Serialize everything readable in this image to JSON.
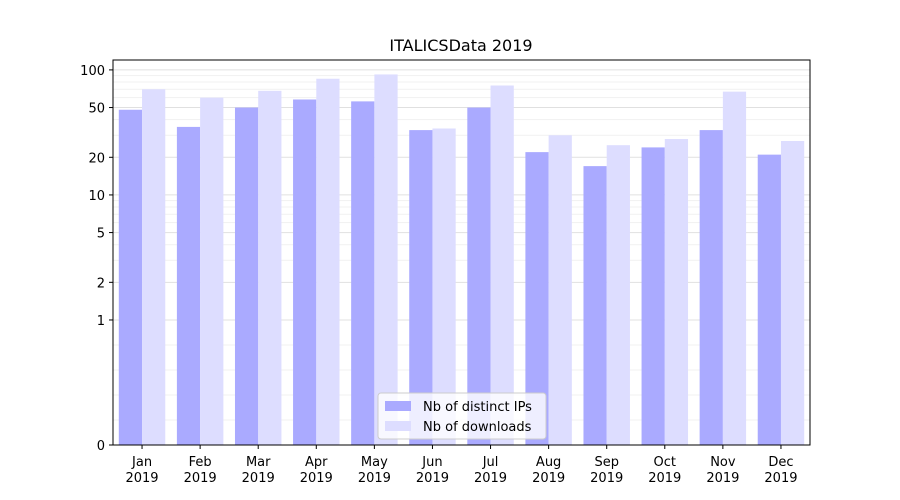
{
  "chart_data": {
    "type": "bar",
    "title": "ITALICSData 2019",
    "xlabel": "",
    "ylabel": "",
    "yscale": "symlog",
    "ylim": [
      0,
      120
    ],
    "yticks": [
      {
        "value": 0,
        "label": "0"
      },
      {
        "value": 1,
        "label": "1"
      },
      {
        "value": 2,
        "label": "2"
      },
      {
        "value": 5,
        "label": "5"
      },
      {
        "value": 10,
        "label": "10"
      },
      {
        "value": 20,
        "label": "20"
      },
      {
        "value": 50,
        "label": "50"
      },
      {
        "value": 100,
        "label": "100"
      }
    ],
    "grid": true,
    "legend_position": "bottom-center",
    "categories": [
      {
        "month": "Jan",
        "year": "2019"
      },
      {
        "month": "Feb",
        "year": "2019"
      },
      {
        "month": "Mar",
        "year": "2019"
      },
      {
        "month": "Apr",
        "year": "2019"
      },
      {
        "month": "May",
        "year": "2019"
      },
      {
        "month": "Jun",
        "year": "2019"
      },
      {
        "month": "Jul",
        "year": "2019"
      },
      {
        "month": "Aug",
        "year": "2019"
      },
      {
        "month": "Sep",
        "year": "2019"
      },
      {
        "month": "Oct",
        "year": "2019"
      },
      {
        "month": "Nov",
        "year": "2019"
      },
      {
        "month": "Dec",
        "year": "2019"
      }
    ],
    "series": [
      {
        "name": "Nb of distinct IPs",
        "color": "#aaaaff",
        "values": [
          48,
          35,
          50,
          58,
          56,
          33,
          50,
          22,
          17,
          24,
          33,
          21
        ]
      },
      {
        "name": "Nb of downloads",
        "color": "#ddddff",
        "values": [
          70,
          60,
          68,
          85,
          92,
          34,
          75,
          30,
          25,
          28,
          67,
          27
        ]
      }
    ]
  }
}
